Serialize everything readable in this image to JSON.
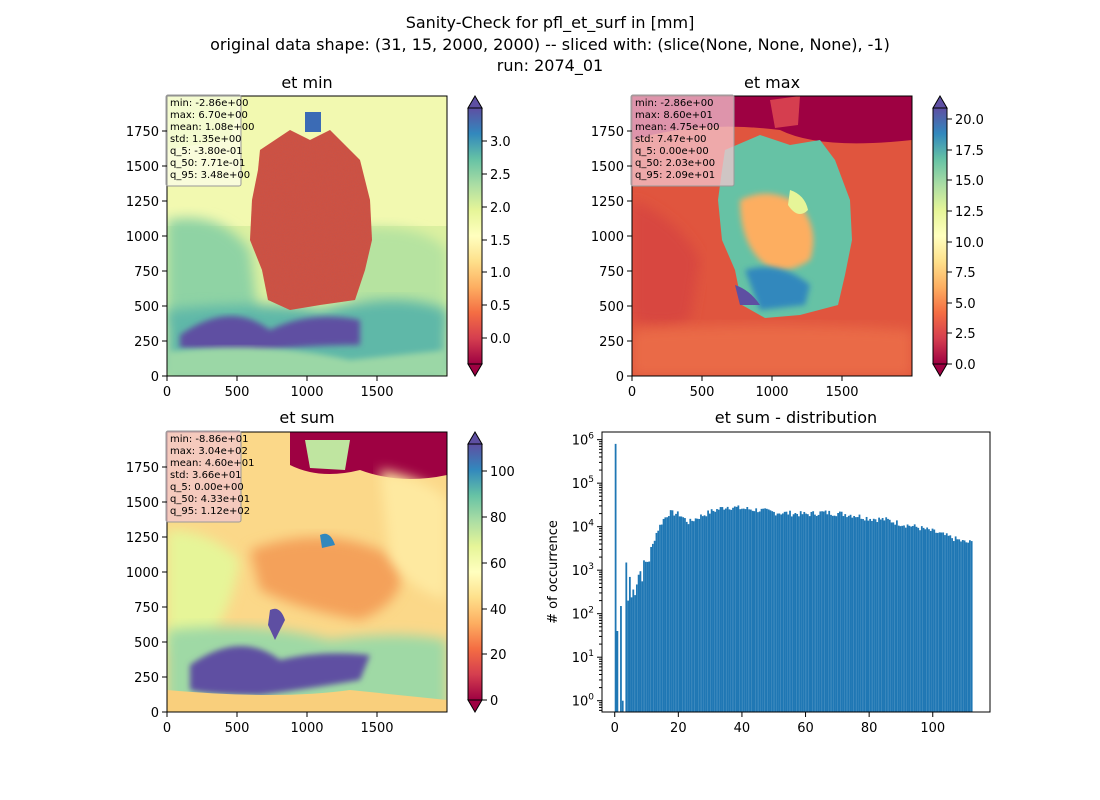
{
  "figure": {
    "title_lines": [
      "Sanity-Check for pfl_et_surf in [mm]",
      "original data shape: (31, 15, 2000, 2000) -- sliced with: (slice(None, None, None), -1)",
      "run: 2074_01"
    ]
  },
  "chart_data": [
    {
      "type": "heatmap",
      "title": "et min",
      "xticks": [
        "0",
        "500",
        "1000",
        "1500"
      ],
      "yticks": [
        "0",
        "250",
        "500",
        "750",
        "1000",
        "1250",
        "1500",
        "1750"
      ],
      "xlim": [
        0,
        2000
      ],
      "ylim": [
        0,
        2000
      ],
      "colormap": "Spectral",
      "colorbar_ticks": [
        "0.0",
        "0.5",
        "1.0",
        "1.5",
        "2.0",
        "2.5",
        "3.0"
      ],
      "colorbar_range": [
        -0.38,
        3.48
      ],
      "stats": [
        "min: -2.86e+00",
        "max: 6.70e+00",
        "mean: 1.08e+00",
        "std: 1.35e+00",
        "q_5: -3.80e-01",
        "q_50: 7.71e-01",
        "q_95: 3.48e+00"
      ],
      "stats_box_color": "#ffffff"
    },
    {
      "type": "heatmap",
      "title": "et max",
      "xticks": [
        "0",
        "500",
        "1000",
        "1500"
      ],
      "yticks": [
        "0",
        "250",
        "500",
        "750",
        "1000",
        "1250",
        "1500",
        "1750"
      ],
      "xlim": [
        0,
        2000
      ],
      "ylim": [
        0,
        2000
      ],
      "colormap": "Spectral",
      "colorbar_ticks": [
        "0.0",
        "2.5",
        "5.0",
        "7.5",
        "10.0",
        "12.5",
        "15.0",
        "17.5",
        "20.0"
      ],
      "colorbar_range": [
        0.0,
        20.9
      ],
      "stats": [
        "min: -2.86e+00",
        "max: 8.60e+01",
        "mean: 4.75e+00",
        "std: 7.47e+00",
        "q_5: 0.00e+00",
        "q_50: 2.03e+00",
        "q_95: 2.09e+01"
      ],
      "stats_box_color": "#f3c6cf"
    },
    {
      "type": "heatmap",
      "title": "et sum",
      "xticks": [
        "0",
        "500",
        "1000",
        "1500"
      ],
      "yticks": [
        "0",
        "250",
        "500",
        "750",
        "1000",
        "1250",
        "1500",
        "1750"
      ],
      "xlim": [
        0,
        2000
      ],
      "ylim": [
        0,
        2000
      ],
      "colormap": "Spectral",
      "colorbar_ticks": [
        "0",
        "20",
        "40",
        "60",
        "80",
        "100"
      ],
      "colorbar_range": [
        0.0,
        112.0
      ],
      "stats": [
        "min: -8.86e+01",
        "max: 3.04e+02",
        "mean: 4.60e+01",
        "std: 3.66e+01",
        "q_5: 0.00e+00",
        "q_50: 4.33e+01",
        "q_95: 1.12e+02"
      ],
      "stats_box_color": "#f3c6cf"
    },
    {
      "type": "bar",
      "title": "et sum - distribution",
      "ylabel": "# of occurrence",
      "xlabel": "",
      "yscale": "log",
      "xlim": [
        -4,
        118
      ],
      "ylim": [
        0.55,
        1500000
      ],
      "xticks": [
        0,
        20,
        40,
        60,
        80,
        100
      ],
      "yticks": [
        "10^0",
        "10^1",
        "10^2",
        "10^3",
        "10^4",
        "10^5",
        "10^6"
      ],
      "bar_color": "#1f77b4",
      "bin_width": 0.56,
      "bins_x_start": 0.0,
      "counts_spikes": [
        {
          "x": 0.0,
          "count": 800000
        },
        {
          "x": 0.56,
          "count": 40
        },
        {
          "x": 1.68,
          "count": 150
        },
        {
          "x": 2.24,
          "count": 1
        },
        {
          "x": 3.36,
          "count": 1500
        },
        {
          "x": 3.92,
          "count": 200
        },
        {
          "x": 4.48,
          "count": 700
        }
      ],
      "counts_profile": [
        {
          "x": 5.0,
          "count": 300
        },
        {
          "x": 7.0,
          "count": 1000
        },
        {
          "x": 9.0,
          "count": 1500
        },
        {
          "x": 11.0,
          "count": 3000
        },
        {
          "x": 13.0,
          "count": 8000
        },
        {
          "x": 15.0,
          "count": 15000
        },
        {
          "x": 17.0,
          "count": 22000
        },
        {
          "x": 20.0,
          "count": 20000
        },
        {
          "x": 23.0,
          "count": 13000
        },
        {
          "x": 26.0,
          "count": 17000
        },
        {
          "x": 30.0,
          "count": 23000
        },
        {
          "x": 35.0,
          "count": 30000
        },
        {
          "x": 40.0,
          "count": 27000
        },
        {
          "x": 45.0,
          "count": 25000
        },
        {
          "x": 50.0,
          "count": 22000
        },
        {
          "x": 55.0,
          "count": 21000
        },
        {
          "x": 60.0,
          "count": 20000
        },
        {
          "x": 65.0,
          "count": 22000
        },
        {
          "x": 70.0,
          "count": 21000
        },
        {
          "x": 75.0,
          "count": 19000
        },
        {
          "x": 80.0,
          "count": 16000
        },
        {
          "x": 85.0,
          "count": 15000
        },
        {
          "x": 90.0,
          "count": 12000
        },
        {
          "x": 95.0,
          "count": 10000
        },
        {
          "x": 100.0,
          "count": 8000
        },
        {
          "x": 105.0,
          "count": 6000
        },
        {
          "x": 110.0,
          "count": 4500
        },
        {
          "x": 112.0,
          "count": 4500
        }
      ]
    }
  ]
}
